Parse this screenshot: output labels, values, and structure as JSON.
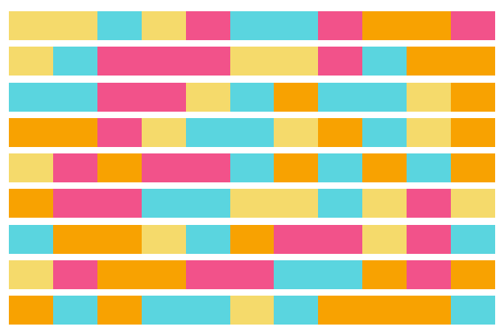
{
  "palette": {
    "Y": "#F5DA6B",
    "C": "#5AD5DF",
    "P": "#F2528A",
    "O": "#F8A201"
  },
  "rows": [
    [
      [
        "Y",
        2
      ],
      [
        "C",
        1
      ],
      [
        "Y",
        1
      ],
      [
        "P",
        1
      ],
      [
        "C",
        2
      ],
      [
        "P",
        1
      ],
      [
        "O",
        2
      ],
      [
        "P",
        1
      ]
    ],
    [
      [
        "Y",
        1
      ],
      [
        "C",
        1
      ],
      [
        "P",
        3
      ],
      [
        "Y",
        2
      ],
      [
        "P",
        1
      ],
      [
        "C",
        1
      ],
      [
        "O",
        2
      ]
    ],
    [
      [
        "C",
        2
      ],
      [
        "P",
        2
      ],
      [
        "Y",
        1
      ],
      [
        "C",
        1
      ],
      [
        "O",
        1
      ],
      [
        "C",
        2
      ],
      [
        "Y",
        1
      ],
      [
        "O",
        1
      ]
    ],
    [
      [
        "O",
        2
      ],
      [
        "P",
        1
      ],
      [
        "Y",
        1
      ],
      [
        "C",
        2
      ],
      [
        "Y",
        1
      ],
      [
        "O",
        1
      ],
      [
        "C",
        1
      ],
      [
        "Y",
        1
      ],
      [
        "O",
        1
      ]
    ],
    [
      [
        "Y",
        1
      ],
      [
        "P",
        1
      ],
      [
        "O",
        1
      ],
      [
        "P",
        2
      ],
      [
        "C",
        1
      ],
      [
        "O",
        1
      ],
      [
        "C",
        1
      ],
      [
        "O",
        1
      ],
      [
        "C",
        1
      ],
      [
        "O",
        1
      ]
    ],
    [
      [
        "O",
        1
      ],
      [
        "P",
        2
      ],
      [
        "C",
        2
      ],
      [
        "Y",
        2
      ],
      [
        "C",
        1
      ],
      [
        "Y",
        1
      ],
      [
        "P",
        1
      ],
      [
        "Y",
        1
      ]
    ],
    [
      [
        "C",
        1
      ],
      [
        "O",
        2
      ],
      [
        "Y",
        1
      ],
      [
        "C",
        1
      ],
      [
        "O",
        1
      ],
      [
        "P",
        2
      ],
      [
        "Y",
        1
      ],
      [
        "P",
        1
      ],
      [
        "C",
        1
      ]
    ],
    [
      [
        "Y",
        1
      ],
      [
        "P",
        1
      ],
      [
        "O",
        2
      ],
      [
        "P",
        2
      ],
      [
        "C",
        2
      ],
      [
        "O",
        1
      ],
      [
        "P",
        1
      ],
      [
        "O",
        1
      ]
    ],
    [
      [
        "O",
        1
      ],
      [
        "C",
        1
      ],
      [
        "O",
        1
      ],
      [
        "C",
        2
      ],
      [
        "Y",
        1
      ],
      [
        "C",
        1
      ],
      [
        "O",
        3
      ],
      [
        "C",
        1
      ]
    ]
  ]
}
